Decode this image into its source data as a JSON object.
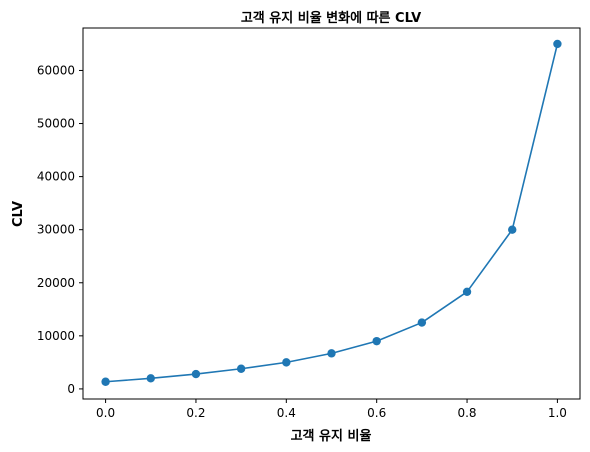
{
  "chart_data": {
    "type": "line",
    "title": "고객 유지 비율 변화에 따른 CLV",
    "xlabel": "고객 유지 비율",
    "ylabel": "CLV",
    "x": [
      0.0,
      0.1,
      0.2,
      0.3,
      0.4,
      0.5,
      0.6,
      0.7,
      0.8,
      0.9,
      1.0
    ],
    "series": [
      {
        "values": [
          1350,
          2000,
          2800,
          3800,
          5000,
          6700,
          9000,
          12500,
          18300,
          30000,
          65000
        ]
      }
    ],
    "xlim": [
      -0.05,
      1.05
    ],
    "ylim": [
      -1900,
      68000
    ],
    "xticks": [
      "0.0",
      "0.2",
      "0.4",
      "0.6",
      "0.8",
      "1.0"
    ],
    "yticks": [
      "0",
      "10000",
      "20000",
      "30000",
      "40000",
      "50000",
      "60000"
    ],
    "grid": false,
    "marker": "circle",
    "color": "#1f77b4"
  }
}
